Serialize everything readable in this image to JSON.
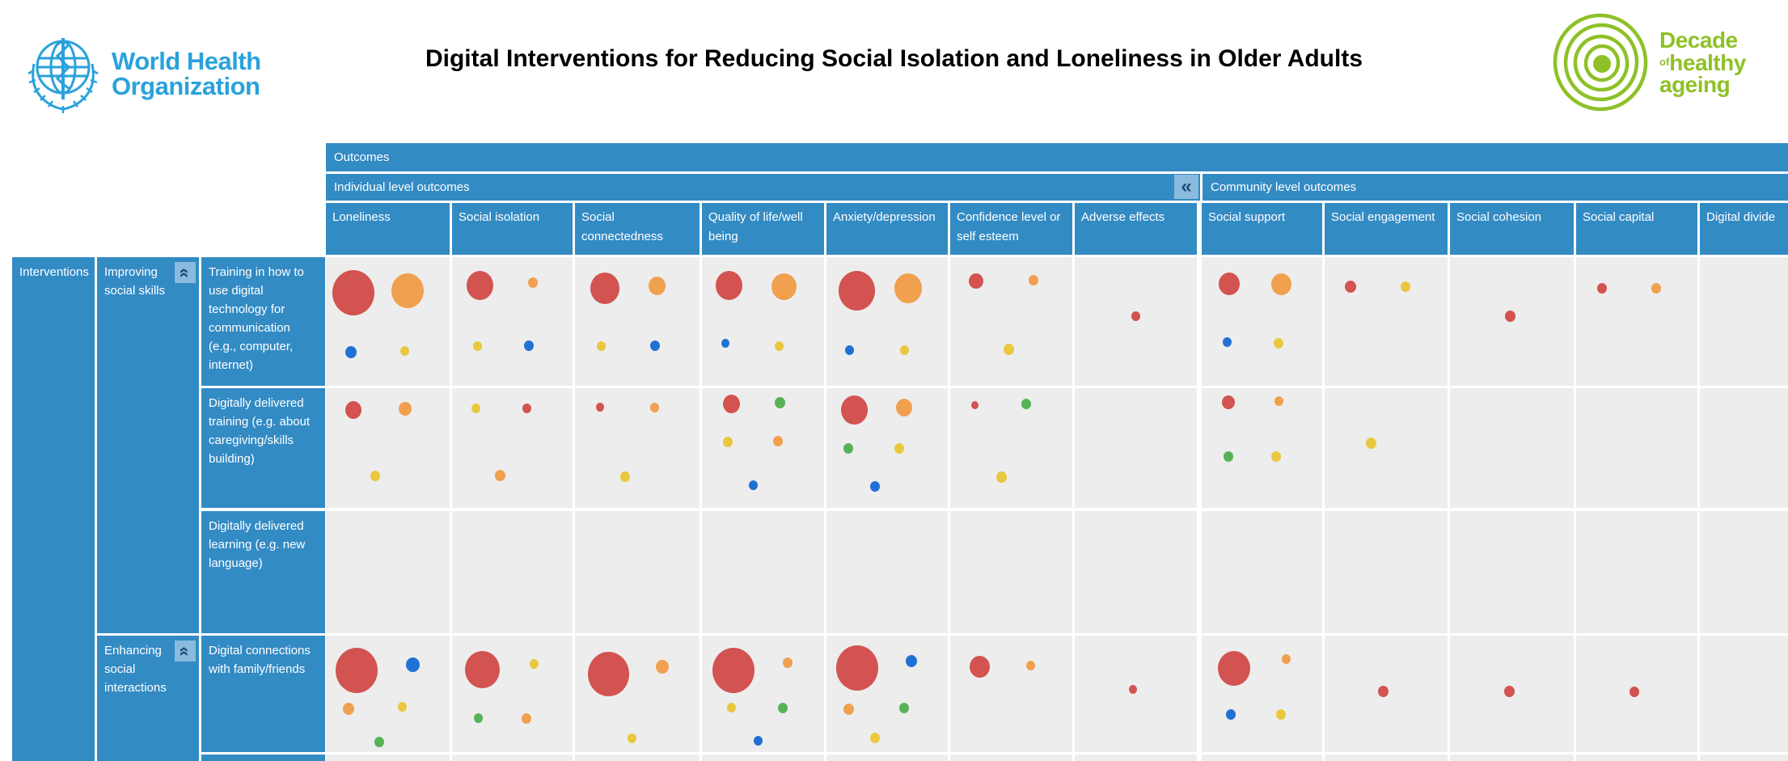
{
  "header": {
    "who_logo": {
      "line1": "World Health",
      "line2": "Organization"
    },
    "title": "Digital Interventions for Reducing Social Isolation and Loneliness in Older Adults",
    "decade_logo": {
      "word1": "Decade",
      "word2_small": "of",
      "word2": "healthy",
      "word3": "ageing"
    }
  },
  "colors": {
    "header_blue": "#338bc4",
    "collapse_button_blue": "#8abade",
    "collapse_glyph_navy": "#1d4f76",
    "cell_gray": "#ededed",
    "who_blue": "#29a2db",
    "decade_green": "#8ec127",
    "bubble_red": "#d25350",
    "bubble_orange": "#f0a04e",
    "bubble_yellow": "#e9c83f",
    "bubble_green": "#57b257",
    "bubble_blue": "#2071d4"
  },
  "matrix": {
    "outcomes_label": "Outcomes",
    "interventions_label": "Interventions",
    "collapse_icon": "«",
    "column_groups": [
      {
        "label": "Individual level outcomes"
      },
      {
        "label": "Community level outcomes"
      }
    ],
    "columns": [
      "Loneliness",
      "Social isolation",
      "Social connectedness",
      "Quality of life/well being",
      "Anxiety/depression",
      "Confidence level or self esteem",
      "Adverse effects",
      "Social support",
      "Social engagement",
      "Social cohesion",
      "Social capital",
      "Digital divide"
    ],
    "row_groups": [
      {
        "label": "Improving social skills",
        "rows": [
          {
            "label": "Training in how to use digital technology for communication (e.g., computer, internet)",
            "cells": [
              [
                {
                  "c": "red",
                  "d": 52,
                  "x": 22,
                  "y": 28
                },
                {
                  "c": "orange",
                  "d": 40,
                  "x": 66,
                  "y": 26
                },
                {
                  "c": "blue",
                  "d": 14,
                  "x": 20,
                  "y": 74
                },
                {
                  "c": "yellow",
                  "d": 11,
                  "x": 64,
                  "y": 73
                }
              ],
              [
                {
                  "c": "red",
                  "d": 33,
                  "x": 23,
                  "y": 22
                },
                {
                  "c": "orange",
                  "d": 12,
                  "x": 67,
                  "y": 20
                },
                {
                  "c": "yellow",
                  "d": 11,
                  "x": 21,
                  "y": 69
                },
                {
                  "c": "blue",
                  "d": 12,
                  "x": 64,
                  "y": 69
                }
              ],
              [
                {
                  "c": "red",
                  "d": 36,
                  "x": 24,
                  "y": 24
                },
                {
                  "c": "orange",
                  "d": 21,
                  "x": 66,
                  "y": 22
                },
                {
                  "c": "yellow",
                  "d": 11,
                  "x": 21,
                  "y": 69
                },
                {
                  "c": "blue",
                  "d": 12,
                  "x": 64,
                  "y": 69
                }
              ],
              [
                {
                  "c": "red",
                  "d": 33,
                  "x": 22,
                  "y": 22
                },
                {
                  "c": "orange",
                  "d": 31,
                  "x": 67,
                  "y": 23
                },
                {
                  "c": "blue",
                  "d": 10,
                  "x": 19,
                  "y": 67
                },
                {
                  "c": "yellow",
                  "d": 11,
                  "x": 63,
                  "y": 69
                }
              ],
              [
                {
                  "c": "red",
                  "d": 45,
                  "x": 25,
                  "y": 26
                },
                {
                  "c": "orange",
                  "d": 34,
                  "x": 67,
                  "y": 24
                },
                {
                  "c": "blue",
                  "d": 11,
                  "x": 19,
                  "y": 72
                },
                {
                  "c": "yellow",
                  "d": 11,
                  "x": 64,
                  "y": 72
                }
              ],
              [
                {
                  "c": "red",
                  "d": 18,
                  "x": 21,
                  "y": 19
                },
                {
                  "c": "orange",
                  "d": 12,
                  "x": 68,
                  "y": 18
                },
                {
                  "c": "yellow",
                  "d": 13,
                  "x": 48,
                  "y": 72
                }
              ],
              [
                {
                  "c": "red",
                  "d": 11,
                  "x": 50,
                  "y": 46
                }
              ],
              [
                {
                  "c": "red",
                  "d": 26,
                  "x": 23,
                  "y": 21
                },
                {
                  "c": "orange",
                  "d": 25,
                  "x": 66,
                  "y": 21
                },
                {
                  "c": "blue",
                  "d": 11,
                  "x": 21,
                  "y": 66
                },
                {
                  "c": "yellow",
                  "d": 12,
                  "x": 64,
                  "y": 67
                }
              ],
              [
                {
                  "c": "red",
                  "d": 14,
                  "x": 21,
                  "y": 23
                },
                {
                  "c": "yellow",
                  "d": 12,
                  "x": 66,
                  "y": 23
                }
              ],
              [
                {
                  "c": "red",
                  "d": 13,
                  "x": 49,
                  "y": 46
                }
              ],
              [
                {
                  "c": "red",
                  "d": 12,
                  "x": 21,
                  "y": 24
                },
                {
                  "c": "orange",
                  "d": 12,
                  "x": 66,
                  "y": 24
                }
              ],
              []
            ]
          },
          {
            "label": "Digitally delivered training (e.g. about caregiving/skills building)",
            "cells": [
              [
                {
                  "c": "red",
                  "d": 20,
                  "x": 22,
                  "y": 18
                },
                {
                  "c": "orange",
                  "d": 16,
                  "x": 64,
                  "y": 17
                },
                {
                  "c": "yellow",
                  "d": 12,
                  "x": 40,
                  "y": 73
                }
              ],
              [
                {
                  "c": "yellow",
                  "d": 11,
                  "x": 20,
                  "y": 17
                },
                {
                  "c": "red",
                  "d": 11,
                  "x": 62,
                  "y": 17
                },
                {
                  "c": "orange",
                  "d": 13,
                  "x": 40,
                  "y": 73
                }
              ],
              [
                {
                  "c": "red",
                  "d": 10,
                  "x": 20,
                  "y": 16
                },
                {
                  "c": "orange",
                  "d": 11,
                  "x": 64,
                  "y": 16
                },
                {
                  "c": "yellow",
                  "d": 12,
                  "x": 40,
                  "y": 74
                }
              ],
              [
                {
                  "c": "red",
                  "d": 21,
                  "x": 24,
                  "y": 13
                },
                {
                  "c": "green",
                  "d": 13,
                  "x": 64,
                  "y": 12
                },
                {
                  "c": "yellow",
                  "d": 12,
                  "x": 21,
                  "y": 45
                },
                {
                  "c": "orange",
                  "d": 12,
                  "x": 62,
                  "y": 44
                },
                {
                  "c": "blue",
                  "d": 11,
                  "x": 42,
                  "y": 81
                }
              ],
              [
                {
                  "c": "red",
                  "d": 33,
                  "x": 23,
                  "y": 18
                },
                {
                  "c": "orange",
                  "d": 20,
                  "x": 64,
                  "y": 16
                },
                {
                  "c": "green",
                  "d": 12,
                  "x": 18,
                  "y": 50
                },
                {
                  "c": "yellow",
                  "d": 12,
                  "x": 60,
                  "y": 50
                },
                {
                  "c": "blue",
                  "d": 12,
                  "x": 40,
                  "y": 82
                }
              ],
              [
                {
                  "c": "red",
                  "d": 9,
                  "x": 20,
                  "y": 14
                },
                {
                  "c": "green",
                  "d": 12,
                  "x": 62,
                  "y": 13
                },
                {
                  "c": "yellow",
                  "d": 13,
                  "x": 42,
                  "y": 74
                }
              ],
              [],
              [
                {
                  "c": "red",
                  "d": 16,
                  "x": 22,
                  "y": 12
                },
                {
                  "c": "orange",
                  "d": 11,
                  "x": 64,
                  "y": 11
                },
                {
                  "c": "green",
                  "d": 12,
                  "x": 22,
                  "y": 57
                },
                {
                  "c": "yellow",
                  "d": 12,
                  "x": 62,
                  "y": 57
                }
              ],
              [
                {
                  "c": "yellow",
                  "d": 13,
                  "x": 38,
                  "y": 46
                }
              ],
              [],
              [],
              []
            ]
          },
          {
            "label": "Digitally delivered learning (e.g. new language)",
            "cells": [
              [],
              [],
              [],
              [],
              [],
              [],
              [],
              [],
              [],
              [],
              [],
              []
            ]
          }
        ]
      },
      {
        "label": "Enhancing social interactions",
        "rows": [
          {
            "label": "Digital connections with family/friends",
            "cells": [
              [
                {
                  "c": "red",
                  "d": 52,
                  "x": 25,
                  "y": 30
                },
                {
                  "c": "blue",
                  "d": 17,
                  "x": 70,
                  "y": 25
                },
                {
                  "c": "orange",
                  "d": 14,
                  "x": 18,
                  "y": 63
                },
                {
                  "c": "yellow",
                  "d": 11,
                  "x": 62,
                  "y": 61
                },
                {
                  "c": "green",
                  "d": 12,
                  "x": 43,
                  "y": 91
                }
              ],
              [
                {
                  "c": "red",
                  "d": 43,
                  "x": 25,
                  "y": 29
                },
                {
                  "c": "yellow",
                  "d": 11,
                  "x": 68,
                  "y": 24
                },
                {
                  "c": "green",
                  "d": 11,
                  "x": 22,
                  "y": 71
                },
                {
                  "c": "orange",
                  "d": 12,
                  "x": 62,
                  "y": 71
                }
              ],
              [
                {
                  "c": "red",
                  "d": 51,
                  "x": 27,
                  "y": 33
                },
                {
                  "c": "orange",
                  "d": 16,
                  "x": 70,
                  "y": 27
                },
                {
                  "c": "yellow",
                  "d": 11,
                  "x": 46,
                  "y": 88
                }
              ],
              [
                {
                  "c": "red",
                  "d": 52,
                  "x": 26,
                  "y": 30
                },
                {
                  "c": "orange",
                  "d": 12,
                  "x": 70,
                  "y": 23
                },
                {
                  "c": "yellow",
                  "d": 11,
                  "x": 24,
                  "y": 62
                },
                {
                  "c": "green",
                  "d": 12,
                  "x": 66,
                  "y": 62
                },
                {
                  "c": "blue",
                  "d": 11,
                  "x": 46,
                  "y": 90
                }
              ],
              [
                {
                  "c": "red",
                  "d": 52,
                  "x": 25,
                  "y": 28
                },
                {
                  "c": "blue",
                  "d": 14,
                  "x": 70,
                  "y": 22
                },
                {
                  "c": "orange",
                  "d": 13,
                  "x": 18,
                  "y": 63
                },
                {
                  "c": "green",
                  "d": 12,
                  "x": 64,
                  "y": 62
                },
                {
                  "c": "yellow",
                  "d": 12,
                  "x": 40,
                  "y": 88
                }
              ],
              [
                {
                  "c": "red",
                  "d": 25,
                  "x": 24,
                  "y": 27
                },
                {
                  "c": "orange",
                  "d": 11,
                  "x": 66,
                  "y": 26
                }
              ],
              [
                {
                  "c": "red",
                  "d": 10,
                  "x": 48,
                  "y": 46
                }
              ],
              [
                {
                  "c": "red",
                  "d": 40,
                  "x": 27,
                  "y": 28
                },
                {
                  "c": "orange",
                  "d": 11,
                  "x": 70,
                  "y": 20
                },
                {
                  "c": "blue",
                  "d": 12,
                  "x": 24,
                  "y": 68
                },
                {
                  "c": "yellow",
                  "d": 12,
                  "x": 66,
                  "y": 68
                }
              ],
              [
                {
                  "c": "red",
                  "d": 13,
                  "x": 48,
                  "y": 48
                }
              ],
              [
                {
                  "c": "red",
                  "d": 13,
                  "x": 48,
                  "y": 48
                }
              ],
              [
                {
                  "c": "red",
                  "d": 12,
                  "x": 48,
                  "y": 48
                }
              ],
              []
            ]
          },
          {
            "label": "",
            "partial": true,
            "cells": [
              [],
              [],
              [],
              [],
              [],
              [],
              [],
              [],
              [],
              [],
              [],
              []
            ]
          }
        ]
      }
    ]
  }
}
